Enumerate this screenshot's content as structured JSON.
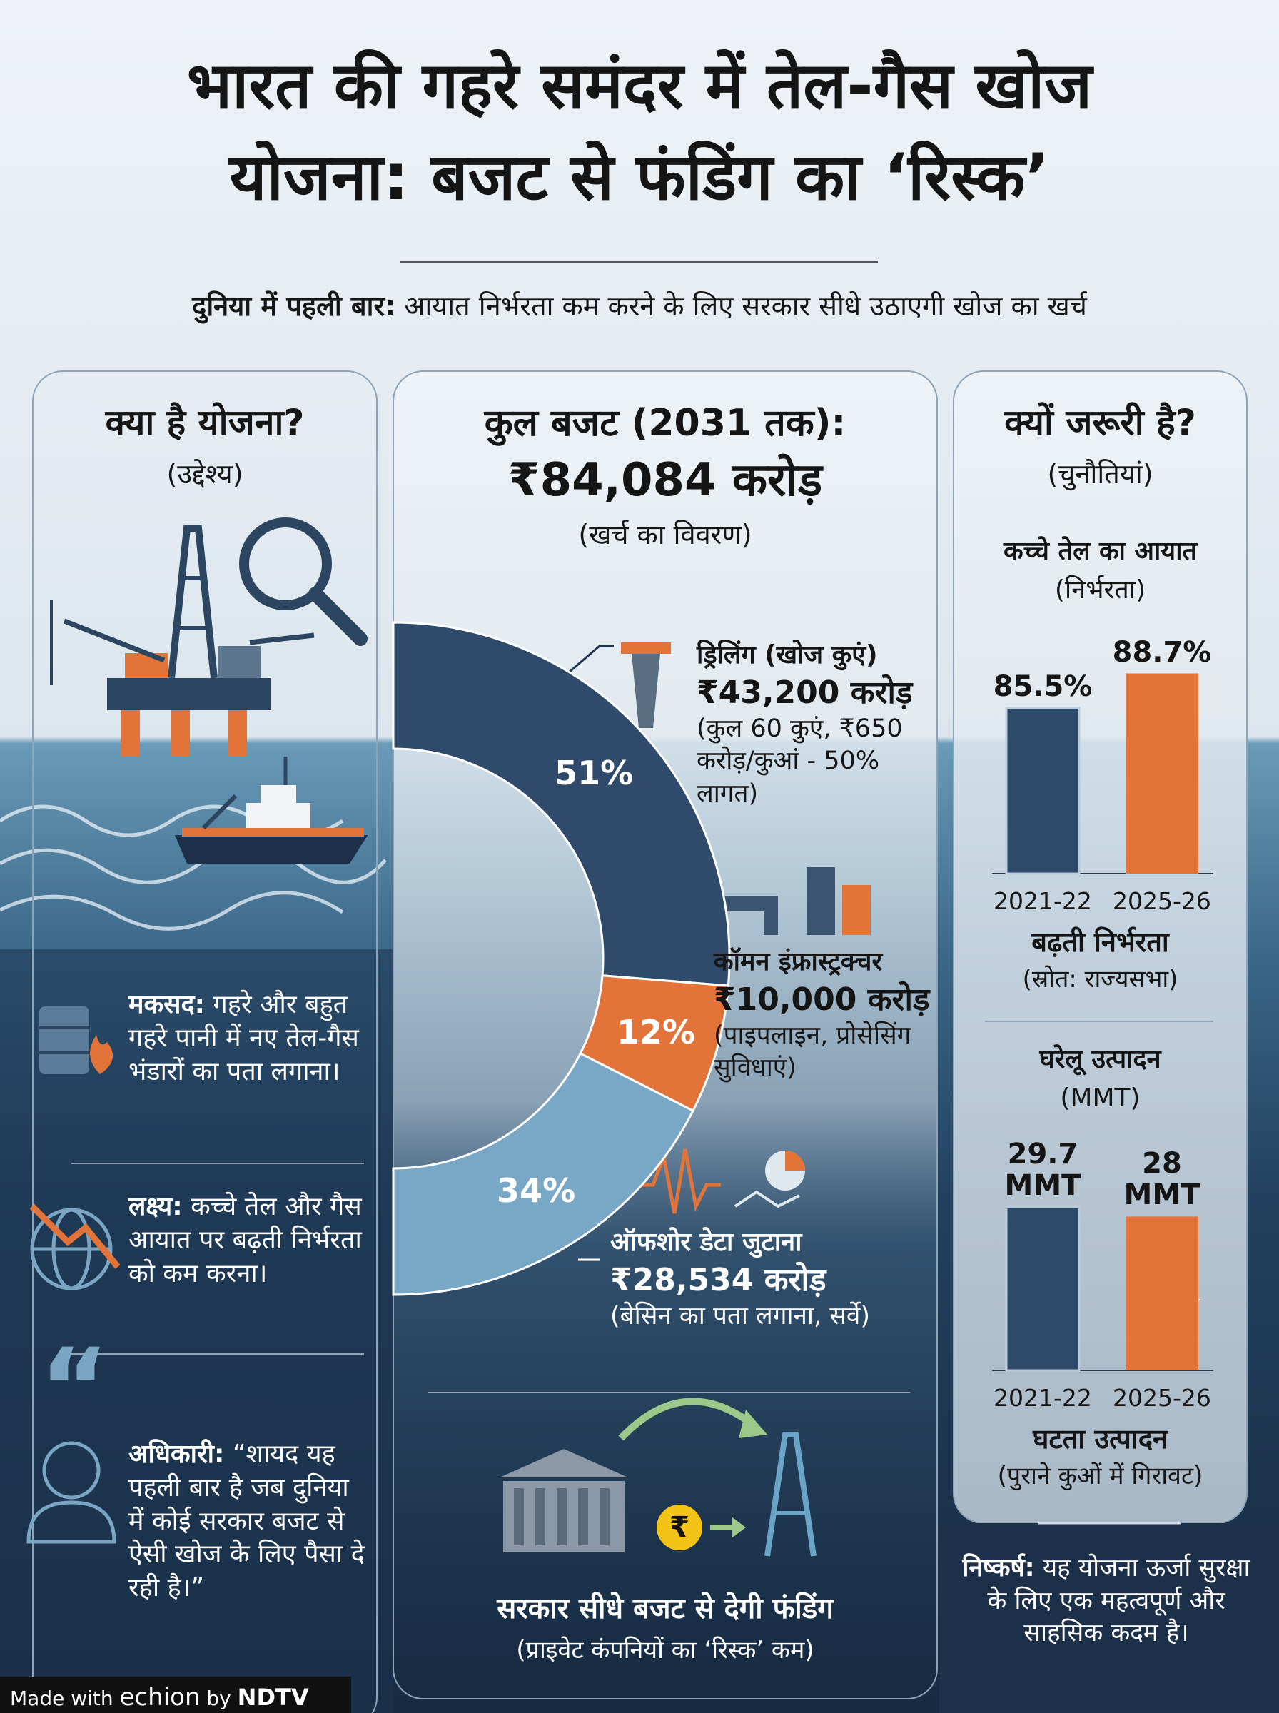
{
  "header": {
    "title_line1": "भारत की गहरे समंदर में तेल-गैस खोज",
    "title_line2": "योजना: बजट से फंडिंग का ‘रिस्क’",
    "subtitle_bold": "दुनिया में पहली बार:",
    "subtitle": "आयात निर्भरता कम करने के लिए सरकार सीधे उठाएगी खोज का खर्च"
  },
  "left_panel": {
    "heading": "क्या है योजना?",
    "subheading": "(उद्देश्य)",
    "quote_mark": "“",
    "items": [
      {
        "label": "मकसद:",
        "text": "गहरे और बहुत गहरे पानी में नए तेल-गैस भंडारों का पता लगाना।"
      },
      {
        "label": "लक्ष्य:",
        "text": "कच्चे तेल और गैस आयात पर बढ़ती निर्भरता को कम करना।"
      },
      {
        "label": "अधिकारी:",
        "text": "“शायद यह पहली बार है जब दुनिया में कोई सरकार बजट से ऐसी खोज के लिए पैसा दे रही है।”"
      }
    ]
  },
  "middle_panel": {
    "coin_symbol": "₹",
    "footer_title": "सरकार सीधे बजट से देगी फंडिंग",
    "footer_note": "(प्राइवेट कंपनियों का ‘रिस्क’ कम)"
  },
  "right_panel": {
    "heading": "क्यों जरूरी है?",
    "subheading": "(चुनौतियां)",
    "conclusion_label": "निष्कर्ष:",
    "conclusion_text": "यह योजना ऊर्जा सुरक्षा के लिए एक महत्वपूर्ण और साहसिक कदम है।"
  },
  "chart_data": [
    {
      "type": "donut",
      "title": "कुल बजट (2031 तक):",
      "subtitle": "₹84,084 करोड़",
      "note": "(खर्च का विवरण)",
      "categories": [
        "ड्रिलिंग (खोज कुएं)",
        "कॉमन इंफ्रास्ट्रक्चर",
        "ऑफशोर डेटा जुटाना"
      ],
      "values": [
        51,
        12,
        34
      ],
      "value_labels": [
        "51%",
        "12%",
        "34%"
      ],
      "amounts": [
        "₹43,200 करोड़",
        "₹10,000 करोड़",
        "₹28,534 करोड़"
      ],
      "details": [
        "(कुल 60 कुएं, ₹650 करोड़/कुआं - 50% लागत)",
        "(पाइपलाइन, प्रोसेसिंग सुविधाएं)",
        "(बेसिन का पता लगाना, सर्वे)"
      ],
      "colors": [
        "#2f4a6a",
        "#e2743a",
        "#79a7c6"
      ]
    },
    {
      "type": "bar",
      "title": "कच्चे तेल का आयात",
      "subtitle": "(निर्भरता)",
      "categories": [
        "2021-22",
        "2025-26"
      ],
      "values": [
        85.5,
        88.7
      ],
      "value_labels": [
        "85.5%",
        "88.7%"
      ],
      "colors": [
        "#2e4a6b",
        "#e2743a"
      ],
      "ylim": [
        70,
        90
      ],
      "caption": "बढ़ती निर्भरता",
      "note": "(स्रोत: राज्यसभा)"
    },
    {
      "type": "bar",
      "title": "घरेलू उत्पादन",
      "subtitle": "(MMT)",
      "categories": [
        "2021-22",
        "2025-26"
      ],
      "values": [
        29.7,
        28
      ],
      "value_labels": [
        "29.7 MMT",
        "28 MMT"
      ],
      "colors": [
        "#2e4a6b",
        "#e2743a"
      ],
      "ylim": [
        0,
        30
      ],
      "caption": "घटता उत्पादन",
      "note": "(पुराने कुओं में गिरावट)"
    }
  ],
  "footer": {
    "made_with": "Made with",
    "brand": "echion",
    "by": "by",
    "partner": "NDTV"
  }
}
